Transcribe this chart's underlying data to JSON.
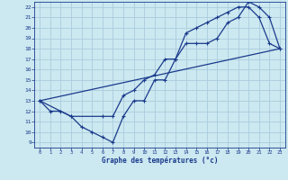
{
  "xlabel": "Graphe des températures (°c)",
  "bg_color": "#cce8f0",
  "line_color": "#1a3a8c",
  "grid_color": "#aaccdd",
  "xlim": [
    -0.5,
    23.5
  ],
  "ylim": [
    8.5,
    22.5
  ],
  "xticks": [
    0,
    1,
    2,
    3,
    4,
    5,
    6,
    7,
    8,
    9,
    10,
    11,
    12,
    13,
    14,
    15,
    16,
    17,
    18,
    19,
    20,
    21,
    22,
    23
  ],
  "yticks": [
    9,
    10,
    11,
    12,
    13,
    14,
    15,
    16,
    17,
    18,
    19,
    20,
    21,
    22
  ],
  "line1_x": [
    0,
    1,
    2,
    3,
    4,
    5,
    6,
    7,
    8,
    9,
    10,
    11,
    12,
    13,
    14,
    15,
    16,
    17,
    18,
    19,
    20,
    21,
    22,
    23
  ],
  "line1_y": [
    13,
    12,
    12,
    11.5,
    10.5,
    10,
    9.5,
    9,
    11.5,
    13,
    13,
    15,
    15,
    17,
    19.5,
    20,
    20.5,
    21,
    21.5,
    22,
    22,
    21,
    18.5,
    18
  ],
  "line2_x": [
    0,
    3,
    6,
    7,
    8,
    9,
    10,
    11,
    12,
    13,
    14,
    15,
    16,
    17,
    18,
    19,
    20,
    21,
    22,
    23
  ],
  "line2_y": [
    13,
    11.5,
    11.5,
    11.5,
    13.5,
    14,
    15,
    15.5,
    17,
    17,
    18.5,
    18.5,
    18.5,
    19,
    20.5,
    21,
    22.5,
    22,
    21,
    18
  ],
  "line3_x": [
    0,
    23
  ],
  "line3_y": [
    13,
    18
  ]
}
